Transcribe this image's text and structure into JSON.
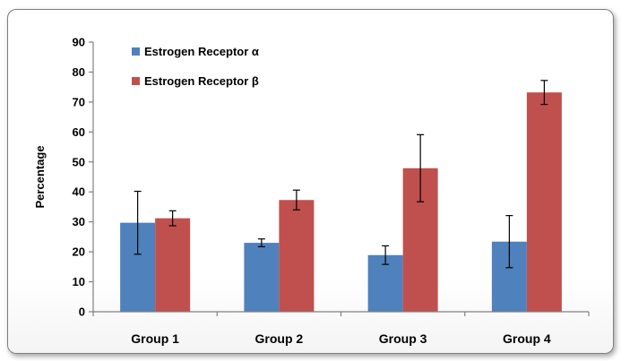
{
  "chart_data": {
    "type": "bar",
    "categories": [
      "Group 1",
      "Group 2",
      "Group 3",
      "Group 4"
    ],
    "series": [
      {
        "name": "Estrogen Receptor α",
        "values": [
          29.7,
          23.0,
          18.9,
          23.4
        ],
        "errors": [
          10.5,
          1.3,
          3.1,
          8.7
        ],
        "color": "#4f81bd"
      },
      {
        "name": "Estrogen Receptor β",
        "values": [
          31.2,
          37.3,
          47.9,
          73.2
        ],
        "errors": [
          2.5,
          3.3,
          11.2,
          4.0
        ],
        "color": "#c0504d"
      }
    ],
    "ylabel": "Percentage",
    "ylim": [
      0,
      90
    ],
    "yticks": [
      0,
      10,
      20,
      30,
      40,
      50,
      60,
      70,
      80,
      90
    ],
    "grid": false,
    "legend_position": "top-left"
  }
}
